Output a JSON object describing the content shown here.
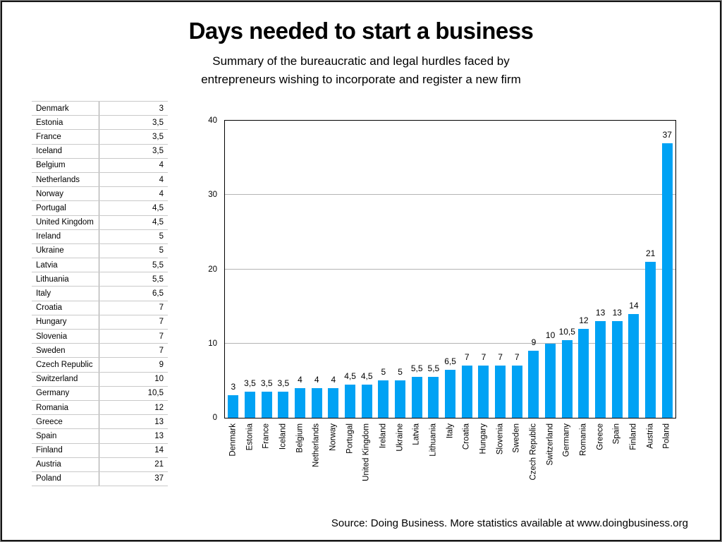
{
  "slide": {
    "title": "Days needed to start a business",
    "subtitle": [
      "Summary of the bureaucratic and legal hurdles faced by",
      "entrepreneurs wishing to incorporate and register a new firm"
    ],
    "source": "Source: Doing Business. More statistics available at www.doingbusiness.org"
  },
  "table": {
    "rows": [
      {
        "country": "Denmark",
        "days": "3"
      },
      {
        "country": "Estonia",
        "days": "3,5"
      },
      {
        "country": "France",
        "days": "3,5"
      },
      {
        "country": "Iceland",
        "days": "3,5"
      },
      {
        "country": "Belgium",
        "days": "4"
      },
      {
        "country": "Netherlands",
        "days": "4"
      },
      {
        "country": "Norway",
        "days": "4"
      },
      {
        "country": "Portugal",
        "days": "4,5"
      },
      {
        "country": "United Kingdom",
        "days": "4,5"
      },
      {
        "country": "Ireland",
        "days": "5"
      },
      {
        "country": "Ukraine",
        "days": "5"
      },
      {
        "country": "Latvia",
        "days": "5,5"
      },
      {
        "country": "Lithuania",
        "days": "5,5"
      },
      {
        "country": "Italy",
        "days": "6,5"
      },
      {
        "country": "Croatia",
        "days": "7"
      },
      {
        "country": "Hungary",
        "days": "7"
      },
      {
        "country": "Slovenia",
        "days": "7"
      },
      {
        "country": "Sweden",
        "days": "7"
      },
      {
        "country": "Czech Republic",
        "days": "9"
      },
      {
        "country": "Switzerland",
        "days": "10"
      },
      {
        "country": "Germany",
        "days": "10,5"
      },
      {
        "country": "Romania",
        "days": "12"
      },
      {
        "country": "Greece",
        "days": "13"
      },
      {
        "country": "Spain",
        "days": "13"
      },
      {
        "country": "Finland",
        "days": "14"
      },
      {
        "country": "Austria",
        "days": "21"
      },
      {
        "country": "Poland",
        "days": "37"
      }
    ]
  },
  "chart_data": {
    "type": "bar",
    "title": "Days needed to start a business",
    "xlabel": "",
    "ylabel": "",
    "categories": [
      "Denmark",
      "Estonia",
      "France",
      "Iceland",
      "Belgium",
      "Netherlands",
      "Norway",
      "Portugal",
      "United Kingdom",
      "Ireland",
      "Ukraine",
      "Latvia",
      "Lithuania",
      "Italy",
      "Croatia",
      "Hungary",
      "Slovenia",
      "Sweden",
      "Czech Republic",
      "Switzerland",
      "Germany",
      "Romania",
      "Greece",
      "Spain",
      "Finland",
      "Austria",
      "Poland"
    ],
    "values": [
      3,
      3.5,
      3.5,
      3.5,
      4,
      4,
      4,
      4.5,
      4.5,
      5,
      5,
      5.5,
      5.5,
      6.5,
      7,
      7,
      7,
      7,
      9,
      10,
      10.5,
      12,
      13,
      13,
      14,
      21,
      37
    ],
    "value_labels": [
      "3",
      "3,5",
      "3,5",
      "3,5",
      "4",
      "4",
      "4",
      "4,5",
      "4,5",
      "5",
      "5",
      "5,5",
      "5,5",
      "6,5",
      "7",
      "7",
      "7",
      "7",
      "9",
      "10",
      "10,5",
      "12",
      "13",
      "13",
      "14",
      "21",
      "37"
    ],
    "ylim": [
      0,
      40
    ],
    "yticks": [
      0,
      10,
      20,
      30,
      40
    ],
    "grid": true,
    "legend": "none",
    "bar_color": "#00A2F4",
    "gridline_color": "#b4b4b4",
    "axis_color": "#000000"
  }
}
